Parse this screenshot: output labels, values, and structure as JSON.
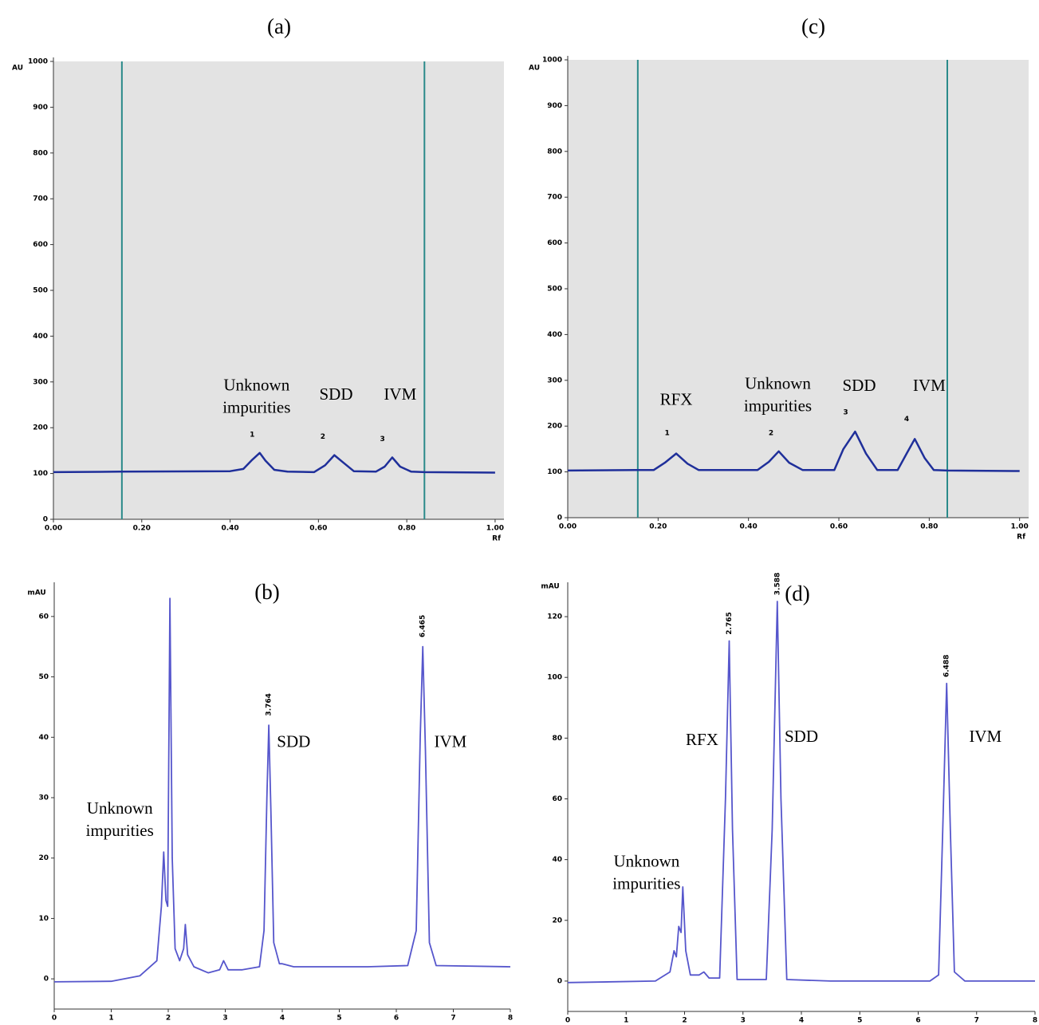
{
  "chart_data": [
    {
      "type": "line",
      "title": "(a)",
      "y_label": "AU",
      "x_label": "Rf",
      "background": "#e3e3e3",
      "color": "#1f2f9a",
      "vline_color": "#2a8a8a",
      "grid": false,
      "xlim": [
        0,
        1.02
      ],
      "ylim": [
        0,
        1000
      ],
      "xticks": [
        {
          "value": 0,
          "label": "0.00"
        },
        {
          "value": 0.2,
          "label": "0.20"
        },
        {
          "value": 0.4,
          "label": "0.40"
        },
        {
          "value": 0.6,
          "label": "0.60"
        },
        {
          "value": 0.8,
          "label": "0.80"
        },
        {
          "value": 1,
          "label": "1.00"
        }
      ],
      "yticks": [
        0,
        100,
        200,
        300,
        400,
        500,
        600,
        700,
        800,
        900,
        1000
      ],
      "vlines": [
        0.155,
        0.84
      ],
      "x": [
        0,
        0.15,
        0.4,
        0.43,
        0.45,
        0.467,
        0.48,
        0.5,
        0.53,
        0.59,
        0.615,
        0.636,
        0.655,
        0.68,
        0.73,
        0.75,
        0.767,
        0.785,
        0.81,
        0.84,
        1.0
      ],
      "values": [
        103,
        104,
        105,
        110,
        130,
        145,
        128,
        108,
        104,
        103,
        118,
        140,
        125,
        105,
        104,
        115,
        135,
        115,
        104,
        103,
        102
      ],
      "peak_numbers": [
        {
          "text": "1",
          "x": 0.45,
          "y": 185
        },
        {
          "text": "2",
          "x": 0.61,
          "y": 180
        },
        {
          "text": "3",
          "x": 0.745,
          "y": 175
        }
      ],
      "annotations": [
        {
          "lines": [
            "Unknown",
            "impurities"
          ],
          "x": 0.46,
          "y": 290
        },
        {
          "lines": [
            "SDD"
          ],
          "x": 0.64,
          "y": 270
        },
        {
          "lines": [
            "IVM"
          ],
          "x": 0.785,
          "y": 270
        }
      ]
    },
    {
      "type": "line",
      "title": "(b)",
      "y_label": "mAU",
      "color": "#5656cc",
      "grid": false,
      "xlim": [
        0,
        8
      ],
      "ylim": [
        -5,
        65
      ],
      "xticks": [
        0,
        1,
        2,
        3,
        4,
        5,
        6,
        7,
        8
      ],
      "yticks": [
        0,
        10,
        20,
        30,
        40,
        50,
        60
      ],
      "x": [
        0,
        1.0,
        1.5,
        1.8,
        1.88,
        1.92,
        1.96,
        1.99,
        2.03,
        2.07,
        2.12,
        2.2,
        2.27,
        2.3,
        2.34,
        2.45,
        2.7,
        2.9,
        2.97,
        3.05,
        3.3,
        3.6,
        3.68,
        3.73,
        3.764,
        3.8,
        3.85,
        3.95,
        4.0,
        4.2,
        5.5,
        6.2,
        6.35,
        6.42,
        6.465,
        6.51,
        6.58,
        6.7,
        8
      ],
      "values": [
        -0.5,
        -0.4,
        0.5,
        3,
        12,
        21,
        13,
        12,
        63,
        20,
        5,
        3,
        5,
        9,
        4,
        2,
        1,
        1.5,
        3,
        1.5,
        1.5,
        2,
        8,
        30,
        42,
        28,
        6,
        2.5,
        2.5,
        2,
        2,
        2.2,
        8,
        40,
        55,
        38,
        6,
        2.2,
        2
      ],
      "retention_labels": [
        {
          "text": "3.764",
          "x": 3.764,
          "y": 43
        },
        {
          "text": "6.465",
          "x": 6.465,
          "y": 56
        }
      ],
      "annotations": [
        {
          "lines": [
            "Unknown",
            "impurities"
          ],
          "x": 1.15,
          "y": 28
        },
        {
          "lines": [
            "SDD"
          ],
          "x": 4.2,
          "y": 39
        },
        {
          "lines": [
            "IVM"
          ],
          "x": 6.95,
          "y": 39
        }
      ]
    },
    {
      "type": "line",
      "title": "(c)",
      "y_label": "AU",
      "x_label": "Rf",
      "background": "#e3e3e3",
      "color": "#1f2f9a",
      "vline_color": "#2a8a8a",
      "grid": false,
      "xlim": [
        0,
        1.02
      ],
      "ylim": [
        0,
        1000
      ],
      "xticks": [
        {
          "value": 0,
          "label": "0.00"
        },
        {
          "value": 0.2,
          "label": "0.20"
        },
        {
          "value": 0.4,
          "label": "0.40"
        },
        {
          "value": 0.6,
          "label": "0.60"
        },
        {
          "value": 0.8,
          "label": "0.80"
        },
        {
          "value": 1,
          "label": "1.00"
        }
      ],
      "yticks": [
        0,
        100,
        200,
        300,
        400,
        500,
        600,
        700,
        800,
        900,
        1000
      ],
      "vlines": [
        0.155,
        0.84
      ],
      "x": [
        0,
        0.15,
        0.19,
        0.215,
        0.24,
        0.265,
        0.29,
        0.42,
        0.445,
        0.467,
        0.49,
        0.52,
        0.59,
        0.61,
        0.636,
        0.66,
        0.685,
        0.73,
        0.75,
        0.768,
        0.79,
        0.81,
        0.84,
        1.0
      ],
      "values": [
        103,
        104,
        104,
        120,
        140,
        118,
        104,
        104,
        122,
        145,
        120,
        104,
        104,
        150,
        188,
        140,
        104,
        104,
        140,
        172,
        130,
        104,
        103,
        102
      ],
      "peak_numbers": [
        {
          "text": "1",
          "x": 0.22,
          "y": 185
        },
        {
          "text": "2",
          "x": 0.45,
          "y": 185
        },
        {
          "text": "3",
          "x": 0.615,
          "y": 230
        },
        {
          "text": "4",
          "x": 0.75,
          "y": 215
        }
      ],
      "annotations": [
        {
          "lines": [
            "RFX"
          ],
          "x": 0.24,
          "y": 255
        },
        {
          "lines": [
            "Unknown",
            "impurities"
          ],
          "x": 0.465,
          "y": 290
        },
        {
          "lines": [
            "SDD"
          ],
          "x": 0.645,
          "y": 285
        },
        {
          "lines": [
            "IVM"
          ],
          "x": 0.8,
          "y": 285
        }
      ]
    },
    {
      "type": "line",
      "title": "(d)",
      "y_label": "mAU",
      "color": "#5656cc",
      "grid": false,
      "xlim": [
        0,
        8
      ],
      "ylim": [
        -10,
        130
      ],
      "xticks": [
        0,
        1,
        2,
        3,
        4,
        5,
        6,
        7,
        8
      ],
      "yticks": [
        0,
        20,
        40,
        60,
        80,
        100,
        120
      ],
      "x": [
        0,
        1.5,
        1.75,
        1.82,
        1.86,
        1.9,
        1.94,
        1.97,
        2.02,
        2.1,
        2.25,
        2.33,
        2.42,
        2.6,
        2.7,
        2.765,
        2.82,
        2.9,
        3.4,
        3.5,
        3.588,
        3.65,
        3.75,
        4.5,
        6.2,
        6.35,
        6.42,
        6.488,
        6.55,
        6.62,
        6.8,
        8
      ],
      "values": [
        -0.5,
        0,
        3,
        10,
        8,
        18,
        16,
        31,
        10,
        2,
        2,
        3,
        1,
        1,
        60,
        112,
        50,
        0.5,
        0.5,
        50,
        125,
        60,
        0.5,
        0,
        0,
        2,
        50,
        98,
        50,
        3,
        0,
        0
      ],
      "retention_labels": [
        {
          "text": "2.765",
          "x": 2.765,
          "y": 113
        },
        {
          "text": "3.588",
          "x": 3.588,
          "y": 126
        },
        {
          "text": "6.488",
          "x": 6.488,
          "y": 99
        }
      ],
      "annotations": [
        {
          "lines": [
            "Unknown",
            "impurities"
          ],
          "x": 1.35,
          "y": 39
        },
        {
          "lines": [
            "RFX"
          ],
          "x": 2.3,
          "y": 79
        },
        {
          "lines": [
            "SDD"
          ],
          "x": 4.0,
          "y": 80
        },
        {
          "lines": [
            "IVM"
          ],
          "x": 7.15,
          "y": 80
        }
      ]
    }
  ]
}
